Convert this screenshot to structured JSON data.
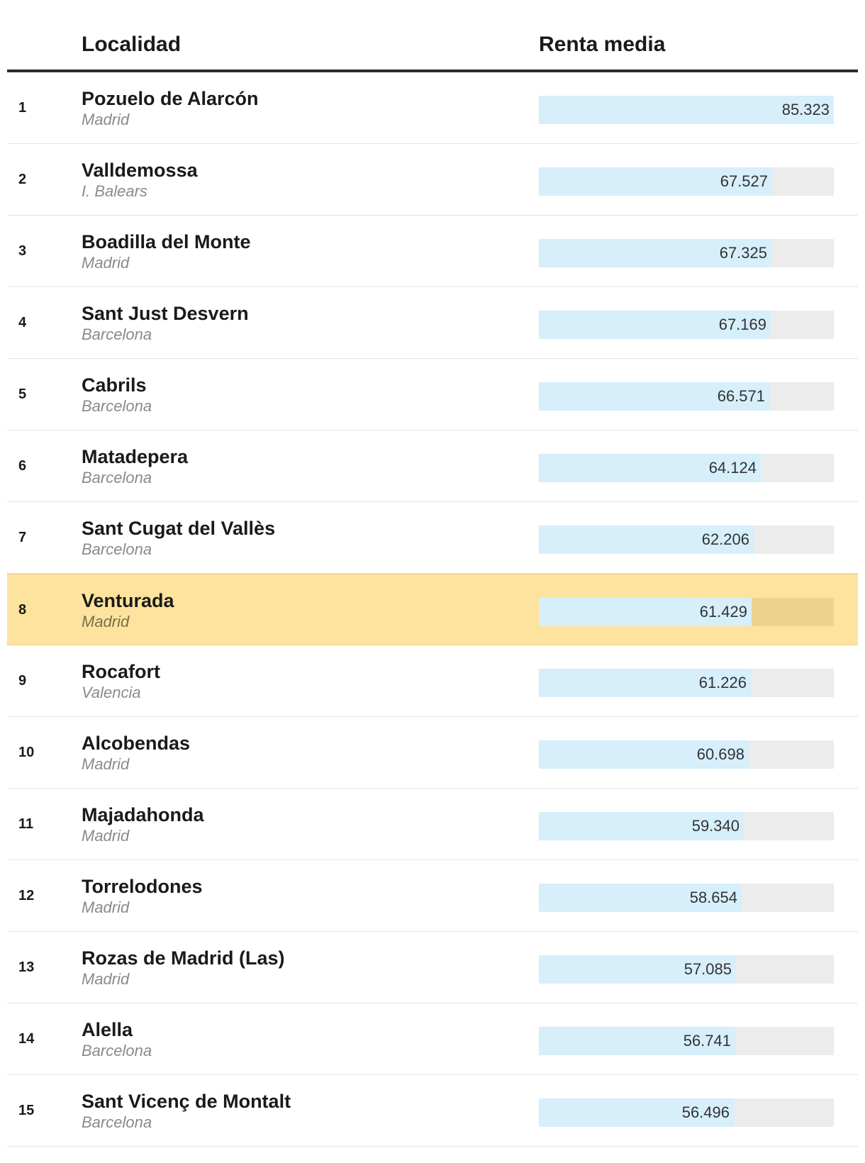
{
  "header": {
    "col_name": "Localidad",
    "col_value": "Renta media"
  },
  "highlight_rank": "8",
  "colors": {
    "bar_fill": "#d7eefb",
    "bar_track": "#ececec",
    "highlight_bg": "#fde39d",
    "rule": "#2b2b2b"
  },
  "chart_data": {
    "type": "bar",
    "orientation": "horizontal",
    "title": "",
    "xlabel": "Renta media",
    "ylabel": "Localidad",
    "xlim": [
      0,
      85323
    ],
    "categories": [
      "Pozuelo de Alarcón",
      "Valldemossa",
      "Boadilla del Monte",
      "Sant Just Desvern",
      "Cabrils",
      "Matadepera",
      "Sant Cugat del Vallès",
      "Venturada",
      "Rocafort",
      "Alcobendas",
      "Majadahonda",
      "Torrelodones",
      "Rozas de Madrid (Las)",
      "Alella",
      "Sant Vicenç de Montalt"
    ],
    "values": [
      85323,
      67527,
      67325,
      67169,
      66571,
      64124,
      62206,
      61429,
      61226,
      60698,
      59340,
      58654,
      57085,
      56741,
      56496
    ],
    "rows": [
      {
        "rank": "1",
        "name": "Pozuelo de Alarcón",
        "region": "Madrid",
        "value": 85323,
        "label": "85.323"
      },
      {
        "rank": "2",
        "name": "Valldemossa",
        "region": "I. Balears",
        "value": 67527,
        "label": "67.527"
      },
      {
        "rank": "3",
        "name": "Boadilla del Monte",
        "region": "Madrid",
        "value": 67325,
        "label": "67.325"
      },
      {
        "rank": "4",
        "name": "Sant Just Desvern",
        "region": "Barcelona",
        "value": 67169,
        "label": "67.169"
      },
      {
        "rank": "5",
        "name": "Cabrils",
        "region": "Barcelona",
        "value": 66571,
        "label": "66.571"
      },
      {
        "rank": "6",
        "name": "Matadepera",
        "region": "Barcelona",
        "value": 64124,
        "label": "64.124"
      },
      {
        "rank": "7",
        "name": "Sant Cugat del Vallès",
        "region": "Barcelona",
        "value": 62206,
        "label": "62.206"
      },
      {
        "rank": "8",
        "name": "Venturada",
        "region": "Madrid",
        "value": 61429,
        "label": "61.429"
      },
      {
        "rank": "9",
        "name": "Rocafort",
        "region": "Valencia",
        "value": 61226,
        "label": "61.226"
      },
      {
        "rank": "10",
        "name": "Alcobendas",
        "region": "Madrid",
        "value": 60698,
        "label": "60.698"
      },
      {
        "rank": "11",
        "name": "Majadahonda",
        "region": "Madrid",
        "value": 59340,
        "label": "59.340"
      },
      {
        "rank": "12",
        "name": "Torrelodones",
        "region": "Madrid",
        "value": 58654,
        "label": "58.654"
      },
      {
        "rank": "13",
        "name": "Rozas de Madrid (Las)",
        "region": "Madrid",
        "value": 57085,
        "label": "57.085"
      },
      {
        "rank": "14",
        "name": "Alella",
        "region": "Barcelona",
        "value": 56741,
        "label": "56.741"
      },
      {
        "rank": "15",
        "name": "Sant Vicenç de Montalt",
        "region": "Barcelona",
        "value": 56496,
        "label": "56.496"
      }
    ]
  }
}
